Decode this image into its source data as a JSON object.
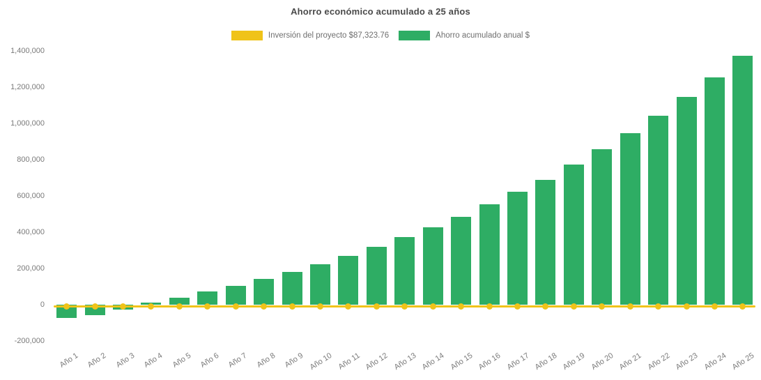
{
  "header": {
    "title": "Ahorro económico acumulado a 25 años"
  },
  "legend": {
    "items": [
      {
        "label": "Inversión del proyecto $87,323.76",
        "color": "#F0C319",
        "series": "investment-line"
      },
      {
        "label": "Ahorro acumulado anual $",
        "color": "#2EAD64",
        "series": "savings-bars"
      }
    ]
  },
  "colors": {
    "bar_green": "#2EAD64",
    "line_yellow": "#F0C319",
    "title_text": "#4a4a4a",
    "axis_text": "#7a7a7a",
    "background": "#ffffff"
  },
  "chart_data": {
    "type": "bar",
    "title": "Ahorro económico acumulado a 25 años",
    "xlabel": "",
    "ylabel": "",
    "grid": false,
    "legend_position": "top",
    "ylim": [
      -200000,
      1400000
    ],
    "ytick_step": 200000,
    "ytick_values": [
      -200000,
      0,
      200000,
      400000,
      600000,
      800000,
      1000000,
      1200000,
      1400000
    ],
    "ytick_labels": [
      "-200,000",
      "0",
      "200,000",
      "400,000",
      "600,000",
      "800,000",
      "1,000,000",
      "1,200,000",
      "1,400,000"
    ],
    "categories": [
      "Año 1",
      "Año 2",
      "Año 3",
      "Año 4",
      "Año 5",
      "Año 6",
      "Año 7",
      "Año 8",
      "Año 9",
      "Año 10",
      "Año 11",
      "Año 12",
      "Año 13",
      "Año 14",
      "Año 15",
      "Año 16",
      "Año 17",
      "Año 18",
      "Año 19",
      "Año 20",
      "Año 21",
      "Año 22",
      "Año 23",
      "Año 24",
      "Año 25"
    ],
    "series": [
      {
        "name": "Ahorro acumulado anual $",
        "type": "bar",
        "color": "#2EAD64",
        "values": [
          -72000,
          -57000,
          -27000,
          12000,
          39000,
          73000,
          106000,
          144000,
          183000,
          224000,
          270000,
          320000,
          373000,
          428000,
          486000,
          556000,
          623000,
          691000,
          775000,
          858000,
          948000,
          1043000,
          1149000,
          1256000,
          1373000
        ]
      },
      {
        "name": "Inversión del proyecto $87,323.76",
        "type": "line",
        "color": "#F0C319",
        "marker": "circle",
        "plotted_at_value": 0,
        "values": [
          0,
          0,
          0,
          0,
          0,
          0,
          0,
          0,
          0,
          0,
          0,
          0,
          0,
          0,
          0,
          0,
          0,
          0,
          0,
          0,
          0,
          0,
          0,
          0,
          0
        ]
      }
    ]
  }
}
